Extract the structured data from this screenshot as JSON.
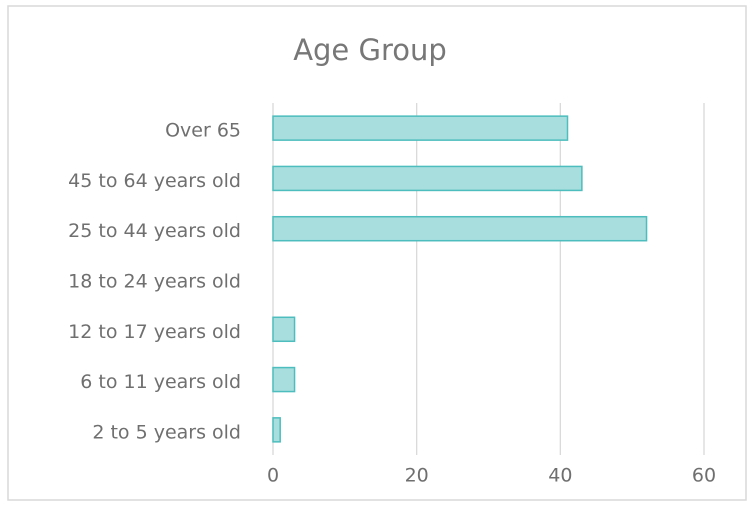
{
  "chart_data": {
    "type": "hbar",
    "title": "Age Group",
    "categories": [
      "Over 65",
      "45 to 64 years old",
      "25 to 44 years old",
      "18 to 24 years old",
      "12 to 17 years old",
      "6 to 11 years old",
      "2 to 5 years old"
    ],
    "values": [
      41,
      43,
      52,
      0,
      3,
      3,
      1
    ],
    "color": "#a8dede",
    "edge_color": "#4dbdbd",
    "xlim": [
      0,
      60
    ],
    "xticks": [
      0,
      20,
      40,
      60
    ],
    "grid": true
  }
}
